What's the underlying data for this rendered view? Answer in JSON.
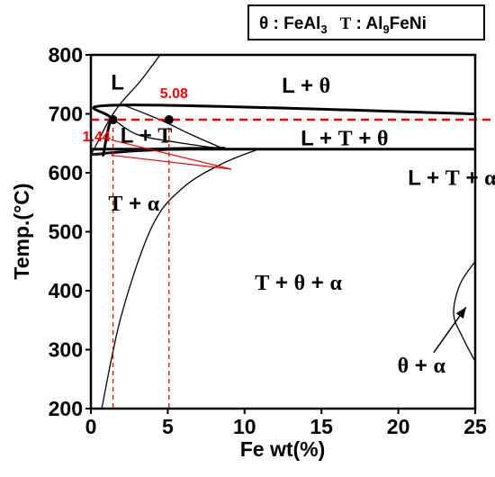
{
  "chart_data": {
    "type": "line",
    "xlabel": "Fe wt(%)",
    "ylabel": "Temp.(°C)",
    "xlim": [
      0,
      25
    ],
    "ylim": [
      200,
      800
    ],
    "x_ticks": [
      "0",
      "5",
      "10",
      "15",
      "20",
      "25"
    ],
    "y_ticks": [
      "200",
      "300",
      "400",
      "500",
      "600",
      "700",
      "800"
    ],
    "grid": false,
    "legend": {
      "placement": "top-right",
      "text_parts": [
        "θ : FeAl",
        "3",
        "T",
        " : Al",
        "9",
        "FeNi"
      ]
    },
    "phase_labels": [
      {
        "text": "L",
        "x": 1.3,
        "y": 755
      },
      {
        "text": "L + θ",
        "x": 14,
        "y": 750
      },
      {
        "text": "L + T",
        "x": 3.6,
        "y": 665
      },
      {
        "text": "L + T + θ",
        "x": 16.5,
        "y": 660
      },
      {
        "text": "L + T + α",
        "x": 23.5,
        "y": 593
      },
      {
        "text": "T + α",
        "x": 2.8,
        "y": 550
      },
      {
        "text": "T + θ + α",
        "x": 13.5,
        "y": 415
      },
      {
        "text": "θ + α",
        "x": 21.5,
        "y": 275
      }
    ],
    "annotations": [
      {
        "text": "1.44",
        "x": 1.44,
        "y": 690
      },
      {
        "text": "5.08",
        "x": 5.08,
        "y": 690
      }
    ],
    "reference_lines": {
      "horizontal_y": 690,
      "vertical_x": [
        1.44,
        5.08
      ],
      "points": [
        {
          "x": 1.44,
          "y": 690
        },
        {
          "x": 5.08,
          "y": 690
        }
      ]
    },
    "series": [
      {
        "values": [
          [
            0,
            630
          ],
          [
            0.5,
            655
          ],
          [
            1.2,
            690
          ],
          [
            2,
            720
          ],
          [
            3.2,
            755
          ],
          [
            4.5,
            800
          ]
        ]
      },
      {
        "values": [
          [
            0.8,
            630
          ],
          [
            1.3,
            690
          ],
          [
            2.1,
            715
          ],
          [
            25,
            700
          ]
        ]
      },
      {
        "values": [
          [
            0,
            640
          ],
          [
            25,
            640
          ]
        ]
      },
      {
        "values": [
          [
            2.1,
            715
          ],
          [
            4.5,
            690
          ],
          [
            6.5,
            665
          ],
          [
            8.7,
            640
          ]
        ]
      },
      {
        "values": [
          [
            1.5,
            690
          ],
          [
            3,
            665
          ],
          [
            5.5,
            652
          ],
          [
            8.7,
            640
          ]
        ]
      },
      {
        "values": [
          [
            0,
            630
          ],
          [
            3,
            636
          ],
          [
            6,
            639
          ],
          [
            8.7,
            640
          ]
        ]
      },
      {
        "values": [
          [
            0,
            632
          ],
          [
            3,
            638
          ],
          [
            8.7,
            640
          ]
        ]
      },
      {
        "values": [
          [
            0.3,
            630
          ],
          [
            4,
            641
          ],
          [
            8.7,
            643
          ]
        ]
      },
      {
        "values": [
          [
            0.7,
            200
          ],
          [
            2,
            360
          ],
          [
            4,
            510
          ],
          [
            6,
            575
          ],
          [
            8.5,
            615
          ],
          [
            10.9,
            640
          ]
        ]
      },
      {
        "values": [
          [
            25,
            450
          ],
          [
            24,
            410
          ],
          [
            23.6,
            360
          ],
          [
            24.2,
            320
          ],
          [
            25,
            280
          ]
        ]
      }
    ],
    "arrows": [
      {
        "from": [
          22.3,
          295
        ],
        "to": [
          24.4,
          372
        ]
      },
      {
        "from": [
          4.7,
          687
        ],
        "to": [
          1.3,
          630
        ]
      },
      {
        "from": [
          9,
          610
        ],
        "to": [
          1.3,
          656
        ]
      }
    ]
  }
}
